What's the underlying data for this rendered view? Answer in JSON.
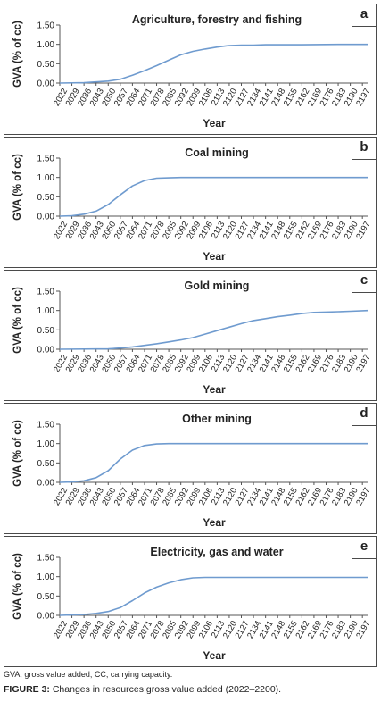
{
  "footnote": "GVA, gross value added; CC, carrying capacity.",
  "caption": {
    "label": "FIGURE 3:",
    "text": " Changes in resources gross value added (2022–2200)."
  },
  "chart_data": [
    {
      "type": "line",
      "panel_label": "a",
      "title": "Agriculture, forestry and fishing",
      "xlabel": "Year",
      "ylabel": "GVA (% of cc)",
      "ylim": [
        0,
        1.5
      ],
      "yticks": [
        "0.00",
        "0.50",
        "1.00",
        "1.50"
      ],
      "xticks": [
        "2022",
        "2029",
        "2036",
        "2043",
        "2050",
        "2057",
        "2064",
        "2071",
        "2078",
        "2085",
        "2092",
        "2099",
        "2106",
        "2113",
        "2120",
        "2127",
        "2134",
        "2141",
        "2148",
        "2155",
        "2162",
        "2169",
        "2176",
        "2183",
        "2190",
        "2197"
      ],
      "color": "#6f9bcf",
      "series": [
        {
          "x": [
            2022,
            2036,
            2050,
            2057,
            2064,
            2071,
            2078,
            2085,
            2092,
            2099,
            2106,
            2113,
            2120,
            2127,
            2134,
            2141,
            2148,
            2162,
            2183,
            2200
          ],
          "y": [
            0,
            0.01,
            0.05,
            0.1,
            0.2,
            0.32,
            0.45,
            0.59,
            0.73,
            0.82,
            0.88,
            0.93,
            0.97,
            0.98,
            0.98,
            0.99,
            0.99,
            0.99,
            1.0,
            1.0
          ]
        }
      ]
    },
    {
      "type": "line",
      "panel_label": "b",
      "title": "Coal mining",
      "xlabel": "Year",
      "ylabel": "GVA (% of cc)",
      "ylim": [
        0,
        1.5
      ],
      "yticks": [
        "0.00",
        "0.50",
        "1.00",
        "1.50"
      ],
      "xticks": [
        "2022",
        "2029",
        "2036",
        "2043",
        "2050",
        "2057",
        "2064",
        "2071",
        "2078",
        "2085",
        "2092",
        "2099",
        "2106",
        "2113",
        "2120",
        "2127",
        "2134",
        "2141",
        "2148",
        "2155",
        "2162",
        "2169",
        "2176",
        "2183",
        "2190",
        "2197"
      ],
      "color": "#6f9bcf",
      "series": [
        {
          "x": [
            2022,
            2029,
            2036,
            2043,
            2050,
            2057,
            2064,
            2071,
            2078,
            2085,
            2092,
            2106,
            2134,
            2200
          ],
          "y": [
            0,
            0.01,
            0.05,
            0.13,
            0.3,
            0.55,
            0.78,
            0.92,
            0.98,
            0.99,
            1.0,
            1.0,
            1.0,
            1.0
          ]
        }
      ]
    },
    {
      "type": "line",
      "panel_label": "c",
      "title": "Gold mining",
      "xlabel": "Year",
      "ylabel": "GVA (% of cc)",
      "ylim": [
        0,
        1.5
      ],
      "yticks": [
        "0.00",
        "0.50",
        "1.00",
        "1.50"
      ],
      "xticks": [
        "2022",
        "2029",
        "2036",
        "2043",
        "2050",
        "2057",
        "2064",
        "2071",
        "2078",
        "2085",
        "2092",
        "2099",
        "2106",
        "2113",
        "2120",
        "2127",
        "2134",
        "2141",
        "2148",
        "2155",
        "2162",
        "2169",
        "2176",
        "2183",
        "2190",
        "2197"
      ],
      "color": "#6f9bcf",
      "series": [
        {
          "x": [
            2022,
            2050,
            2057,
            2064,
            2071,
            2078,
            2085,
            2092,
            2099,
            2106,
            2113,
            2120,
            2127,
            2134,
            2141,
            2148,
            2155,
            2162,
            2169,
            2176,
            2183,
            2190,
            2200
          ],
          "y": [
            0,
            0.01,
            0.03,
            0.06,
            0.1,
            0.14,
            0.19,
            0.24,
            0.3,
            0.39,
            0.48,
            0.57,
            0.66,
            0.74,
            0.79,
            0.84,
            0.88,
            0.92,
            0.95,
            0.96,
            0.97,
            0.98,
            1.0
          ]
        }
      ]
    },
    {
      "type": "line",
      "panel_label": "d",
      "title": "Other mining",
      "xlabel": "Year",
      "ylabel": "GVA (% of cc)",
      "ylim": [
        0,
        1.5
      ],
      "yticks": [
        "0.00",
        "0.50",
        "1.00",
        "1.50"
      ],
      "xticks": [
        "2022",
        "2029",
        "2036",
        "2043",
        "2050",
        "2057",
        "2064",
        "2071",
        "2078",
        "2085",
        "2092",
        "2099",
        "2106",
        "2113",
        "2120",
        "2127",
        "2134",
        "2141",
        "2148",
        "2155",
        "2162",
        "2169",
        "2176",
        "2183",
        "2190",
        "2197"
      ],
      "color": "#6f9bcf",
      "series": [
        {
          "x": [
            2022,
            2029,
            2036,
            2043,
            2050,
            2057,
            2064,
            2071,
            2078,
            2085,
            2092,
            2113,
            2141,
            2200
          ],
          "y": [
            0,
            0.01,
            0.04,
            0.12,
            0.3,
            0.6,
            0.83,
            0.95,
            0.99,
            1.0,
            1.0,
            1.0,
            1.0,
            1.0
          ]
        }
      ]
    },
    {
      "type": "line",
      "panel_label": "e",
      "title": "Electricity, gas and water",
      "xlabel": "Year",
      "ylabel": "GVA (% of cc)",
      "ylim": [
        0,
        1.5
      ],
      "yticks": [
        "0.00",
        "0.50",
        "1.00",
        "1.50"
      ],
      "xticks": [
        "2022",
        "2029",
        "2036",
        "2043",
        "2050",
        "2057",
        "2064",
        "2071",
        "2078",
        "2085",
        "2092",
        "2099",
        "2106",
        "2113",
        "2120",
        "2127",
        "2134",
        "2141",
        "2148",
        "2155",
        "2162",
        "2169",
        "2176",
        "2183",
        "2190",
        "2197"
      ],
      "color": "#6f9bcf",
      "series": [
        {
          "x": [
            2022,
            2036,
            2043,
            2050,
            2057,
            2064,
            2071,
            2078,
            2085,
            2092,
            2099,
            2106,
            2120,
            2148,
            2200
          ],
          "y": [
            0,
            0.02,
            0.05,
            0.1,
            0.2,
            0.38,
            0.58,
            0.73,
            0.84,
            0.92,
            0.97,
            0.98,
            0.98,
            0.98,
            0.98
          ]
        }
      ]
    }
  ]
}
